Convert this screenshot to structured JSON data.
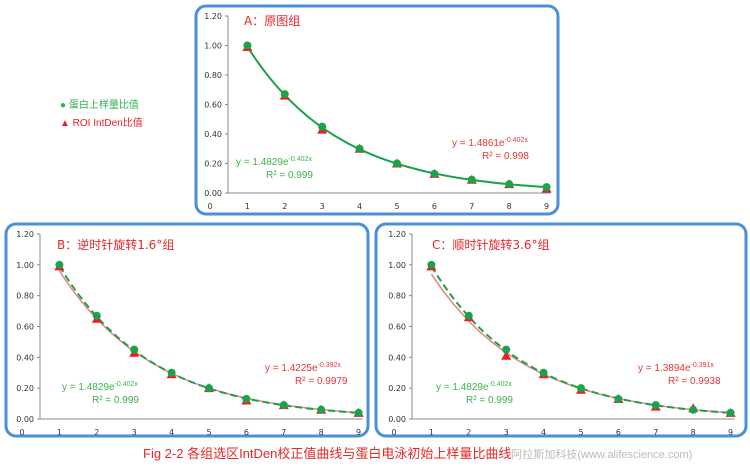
{
  "legend": {
    "green_label": "● 蛋白上样量比值",
    "red_label": "▲ ROI IntDen比值"
  },
  "colors": {
    "green": "#1aa34a",
    "red": "#ee1c24",
    "red_line": "#f08080",
    "frame": "#4a90d9",
    "title": "#e8262b"
  },
  "caption": {
    "text": "Fig 2-2 各组选区IntDen校正值曲线与蛋白电泳初始上样量比曲线",
    "watermark": "阿拉斯加科技(www.alifescience.com)"
  },
  "chart_data": [
    {
      "type": "scatter",
      "title": "A：原图组",
      "x": [
        1,
        2,
        3,
        4,
        5,
        6,
        7,
        8,
        9
      ],
      "xticks": [
        "0",
        "1",
        "2",
        "3",
        "4",
        "5",
        "6",
        "7",
        "8",
        "9"
      ],
      "yticks": [
        "0.00",
        "0.20",
        "0.40",
        "0.60",
        "0.80",
        "1.00",
        "1.20"
      ],
      "ylim": [
        0,
        1.2
      ],
      "xlim": [
        0,
        9
      ],
      "series": [
        {
          "name": "蛋白上样量比值",
          "marker": "circle",
          "values": [
            1.0,
            0.67,
            0.45,
            0.3,
            0.2,
            0.13,
            0.09,
            0.06,
            0.04
          ],
          "fit": {
            "a": 1.4829,
            "b": -0.402
          },
          "equation": "y = 1.4829e",
          "exponent": "-0.402x",
          "r2": "R² = 0.999",
          "fit_style": "solid"
        },
        {
          "name": "ROI IntDen比值",
          "marker": "triangle",
          "values": [
            0.99,
            0.66,
            0.43,
            0.3,
            0.2,
            0.13,
            0.09,
            0.06,
            0.03
          ],
          "fit": {
            "a": 1.4861,
            "b": -0.402
          },
          "equation": "y = 1.4861e",
          "exponent": "-0.402x",
          "r2": "R² = 0.998"
        }
      ]
    },
    {
      "type": "scatter",
      "title": "B：逆时针旋转1.6°组",
      "x": [
        1,
        2,
        3,
        4,
        5,
        6,
        7,
        8,
        9
      ],
      "xticks": [
        "0",
        "1",
        "2",
        "3",
        "4",
        "5",
        "6",
        "7",
        "8",
        "9"
      ],
      "yticks": [
        "0.00",
        "0.20",
        "0.40",
        "0.60",
        "0.80",
        "1.00",
        "1.20"
      ],
      "ylim": [
        0,
        1.2
      ],
      "xlim": [
        0,
        9
      ],
      "series": [
        {
          "name": "蛋白上样量比值",
          "marker": "circle",
          "values": [
            1.0,
            0.67,
            0.45,
            0.3,
            0.2,
            0.13,
            0.09,
            0.06,
            0.04
          ],
          "fit": {
            "a": 1.4829,
            "b": -0.402
          },
          "equation": "y = 1.4829e",
          "exponent": "-0.402x",
          "r2": "R² = 0.999",
          "fit_style": "dashed"
        },
        {
          "name": "ROI IntDen比值",
          "marker": "triangle",
          "values": [
            0.99,
            0.65,
            0.43,
            0.29,
            0.2,
            0.12,
            0.09,
            0.06,
            0.04
          ],
          "fit": {
            "a": 1.4225,
            "b": -0.392
          },
          "equation": "y = 1.4225e",
          "exponent": "-0.392x",
          "r2": "R² = 0.9979"
        }
      ]
    },
    {
      "type": "scatter",
      "title": "C：顺时针旋转3.6°组",
      "x": [
        1,
        2,
        3,
        4,
        5,
        6,
        7,
        8,
        9
      ],
      "xticks": [
        "0",
        "1",
        "2",
        "3",
        "4",
        "5",
        "6",
        "7",
        "8",
        "9"
      ],
      "yticks": [
        "0.00",
        "0.20",
        "0.40",
        "0.60",
        "0.80",
        "1.00",
        "1.20"
      ],
      "ylim": [
        0,
        1.2
      ],
      "xlim": [
        0,
        9
      ],
      "series": [
        {
          "name": "蛋白上样量比值",
          "marker": "circle",
          "values": [
            1.0,
            0.67,
            0.45,
            0.3,
            0.2,
            0.13,
            0.09,
            0.06,
            0.04
          ],
          "fit": {
            "a": 1.4829,
            "b": -0.402
          },
          "equation": "y = 1.4829e",
          "exponent": "-0.402x",
          "r2": "R² = 0.999",
          "fit_style": "dashed"
        },
        {
          "name": "ROI IntDen比值",
          "marker": "triangle",
          "values": [
            0.99,
            0.66,
            0.41,
            0.29,
            0.19,
            0.13,
            0.08,
            0.07,
            0.04
          ],
          "fit": {
            "a": 1.3894,
            "b": -0.391
          },
          "equation": "y = 1.3894e",
          "exponent": "-0.391x",
          "r2": "R² = 0.9938"
        }
      ]
    }
  ]
}
